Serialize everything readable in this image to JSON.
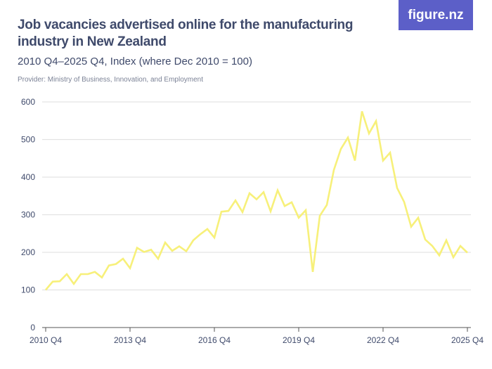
{
  "header": {
    "title": "Job vacancies advertised online for the manufacturing industry in New Zealand",
    "subtitle": "2010 Q4–2025 Q4, Index (where Dec 2010 = 100)",
    "provider": "Provider: Ministry of Business, Innovation, and Employment",
    "logo": "figure.nz"
  },
  "chart_data": {
    "type": "line",
    "title": "Job vacancies advertised online for the manufacturing industry in New Zealand",
    "ylabel": "",
    "xlabel": "",
    "ylim": [
      0,
      600
    ],
    "yticks": [
      0,
      100,
      200,
      300,
      400,
      500,
      600
    ],
    "grid": true,
    "line_color": "#f7f07a",
    "x_start": "2010 Q4",
    "x_end": "2025 Q4",
    "xtick_labels": [
      "2010 Q4",
      "2013 Q4",
      "2016 Q4",
      "2019 Q4",
      "2022 Q4",
      "2025 Q4"
    ],
    "values": [
      100,
      122,
      123,
      142,
      116,
      142,
      142,
      148,
      133,
      165,
      169,
      183,
      158,
      212,
      201,
      207,
      183,
      226,
      204,
      216,
      203,
      232,
      248,
      262,
      239,
      308,
      310,
      338,
      307,
      357,
      341,
      360,
      309,
      365,
      323,
      333,
      292,
      312,
      148,
      297,
      326,
      419,
      475,
      505,
      444,
      575,
      516,
      549,
      444,
      465,
      371,
      334,
      268,
      292,
      234,
      217,
      192,
      232,
      187,
      217,
      199
    ]
  }
}
